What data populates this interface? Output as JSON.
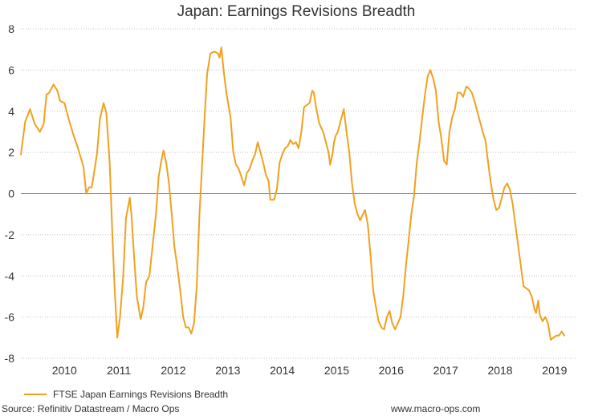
{
  "chart_data": {
    "type": "line",
    "title": "Japan: Earnings Revisions Breadth",
    "xlabel": "",
    "ylabel": "",
    "ylim": [
      -8,
      8
    ],
    "yticks": [
      8,
      6,
      4,
      2,
      0,
      -2,
      -4,
      -6,
      -8
    ],
    "xlim": [
      2009.2,
      2019.4
    ],
    "xticks": [
      2010,
      2011,
      2012,
      2013,
      2014,
      2015,
      2016,
      2017,
      2018,
      2019
    ],
    "xtick_labels": [
      "2010",
      "2011",
      "2012",
      "2013",
      "2014",
      "2015",
      "2016",
      "2017",
      "2018",
      "2019"
    ],
    "grid": "horizontal dotted",
    "legend_position": "bottom-left",
    "series": [
      {
        "name": "FTSE Japan Earnings Revisions Breadth",
        "color": "#f0a11e",
        "points": [
          [
            2009.2,
            1.9
          ],
          [
            2009.28,
            3.5
          ],
          [
            2009.37,
            4.1
          ],
          [
            2009.45,
            3.4
          ],
          [
            2009.55,
            3.0
          ],
          [
            2009.62,
            3.4
          ],
          [
            2009.67,
            4.8
          ],
          [
            2009.72,
            4.9
          ],
          [
            2009.8,
            5.3
          ],
          [
            2009.87,
            5.0
          ],
          [
            2009.92,
            4.5
          ],
          [
            2010.0,
            4.4
          ],
          [
            2010.08,
            3.6
          ],
          [
            2010.16,
            2.9
          ],
          [
            2010.25,
            2.2
          ],
          [
            2010.35,
            1.3
          ],
          [
            2010.4,
            0.0
          ],
          [
            2010.45,
            0.3
          ],
          [
            2010.5,
            0.3
          ],
          [
            2010.55,
            1.1
          ],
          [
            2010.6,
            2.0
          ],
          [
            2010.65,
            3.6
          ],
          [
            2010.72,
            4.4
          ],
          [
            2010.77,
            3.9
          ],
          [
            2010.83,
            1.5
          ],
          [
            2010.88,
            -2.0
          ],
          [
            2010.92,
            -4.5
          ],
          [
            2010.97,
            -7.0
          ],
          [
            2011.02,
            -6.0
          ],
          [
            2011.08,
            -4.0
          ],
          [
            2011.13,
            -1.2
          ],
          [
            2011.2,
            -0.2
          ],
          [
            2011.23,
            -1.0
          ],
          [
            2011.27,
            -2.7
          ],
          [
            2011.33,
            -5.0
          ],
          [
            2011.4,
            -6.1
          ],
          [
            2011.45,
            -5.5
          ],
          [
            2011.5,
            -4.3
          ],
          [
            2011.56,
            -4.0
          ],
          [
            2011.62,
            -2.5
          ],
          [
            2011.68,
            -1.0
          ],
          [
            2011.73,
            0.8
          ],
          [
            2011.78,
            1.6
          ],
          [
            2011.82,
            2.1
          ],
          [
            2011.87,
            1.5
          ],
          [
            2011.92,
            0.5
          ],
          [
            2011.97,
            -1.0
          ],
          [
            2012.02,
            -2.6
          ],
          [
            2012.07,
            -3.5
          ],
          [
            2012.13,
            -4.8
          ],
          [
            2012.18,
            -6.0
          ],
          [
            2012.23,
            -6.5
          ],
          [
            2012.28,
            -6.5
          ],
          [
            2012.33,
            -6.8
          ],
          [
            2012.38,
            -6.3
          ],
          [
            2012.43,
            -4.5
          ],
          [
            2012.48,
            -1.0
          ],
          [
            2012.53,
            1.5
          ],
          [
            2012.58,
            4.0
          ],
          [
            2012.62,
            5.8
          ],
          [
            2012.68,
            6.8
          ],
          [
            2012.75,
            6.9
          ],
          [
            2012.82,
            6.8
          ],
          [
            2012.85,
            6.6
          ],
          [
            2012.88,
            7.1
          ],
          [
            2012.93,
            5.8
          ],
          [
            2012.98,
            4.8
          ],
          [
            2013.05,
            3.7
          ],
          [
            2013.1,
            2.0
          ],
          [
            2013.15,
            1.4
          ],
          [
            2013.2,
            1.2
          ],
          [
            2013.25,
            0.8
          ],
          [
            2013.3,
            0.4
          ],
          [
            2013.35,
            1.0
          ],
          [
            2013.4,
            1.2
          ],
          [
            2013.45,
            1.6
          ],
          [
            2013.5,
            1.9
          ],
          [
            2013.55,
            2.5
          ],
          [
            2013.6,
            2.0
          ],
          [
            2013.65,
            1.5
          ],
          [
            2013.7,
            0.9
          ],
          [
            2013.75,
            0.6
          ],
          [
            2013.78,
            -0.3
          ],
          [
            2013.85,
            -0.3
          ],
          [
            2013.9,
            0.2
          ],
          [
            2013.95,
            1.5
          ],
          [
            2014.0,
            1.9
          ],
          [
            2014.05,
            2.2
          ],
          [
            2014.1,
            2.3
          ],
          [
            2014.15,
            2.6
          ],
          [
            2014.2,
            2.4
          ],
          [
            2014.25,
            2.5
          ],
          [
            2014.3,
            2.2
          ],
          [
            2014.35,
            3.0
          ],
          [
            2014.4,
            4.2
          ],
          [
            2014.45,
            4.3
          ],
          [
            2014.5,
            4.4
          ],
          [
            2014.55,
            5.0
          ],
          [
            2014.58,
            4.9
          ],
          [
            2014.62,
            4.2
          ],
          [
            2014.68,
            3.4
          ],
          [
            2014.75,
            3.0
          ],
          [
            2014.8,
            2.5
          ],
          [
            2014.85,
            2.0
          ],
          [
            2014.88,
            1.4
          ],
          [
            2014.92,
            1.9
          ],
          [
            2014.95,
            2.5
          ],
          [
            2014.98,
            2.8
          ],
          [
            2015.02,
            3.0
          ],
          [
            2015.07,
            3.5
          ],
          [
            2015.1,
            3.8
          ],
          [
            2015.13,
            4.1
          ],
          [
            2015.18,
            3.0
          ],
          [
            2015.23,
            2.0
          ],
          [
            2015.28,
            0.5
          ],
          [
            2015.33,
            -0.5
          ],
          [
            2015.38,
            -1.0
          ],
          [
            2015.43,
            -1.3
          ],
          [
            2015.48,
            -1.0
          ],
          [
            2015.52,
            -0.8
          ],
          [
            2015.57,
            -1.5
          ],
          [
            2015.62,
            -3.0
          ],
          [
            2015.67,
            -4.7
          ],
          [
            2015.72,
            -5.5
          ],
          [
            2015.77,
            -6.2
          ],
          [
            2015.82,
            -6.5
          ],
          [
            2015.87,
            -6.6
          ],
          [
            2015.92,
            -6.0
          ],
          [
            2015.97,
            -5.7
          ],
          [
            2016.02,
            -6.3
          ],
          [
            2016.07,
            -6.6
          ],
          [
            2016.12,
            -6.3
          ],
          [
            2016.17,
            -6.0
          ],
          [
            2016.22,
            -5.0
          ],
          [
            2016.27,
            -3.5
          ],
          [
            2016.32,
            -2.3
          ],
          [
            2016.37,
            -1.0
          ],
          [
            2016.42,
            -0.1
          ],
          [
            2016.47,
            1.5
          ],
          [
            2016.52,
            2.5
          ],
          [
            2016.57,
            3.7
          ],
          [
            2016.62,
            4.8
          ],
          [
            2016.67,
            5.7
          ],
          [
            2016.72,
            6.0
          ],
          [
            2016.77,
            5.6
          ],
          [
            2016.82,
            5.0
          ],
          [
            2016.87,
            3.5
          ],
          [
            2016.92,
            2.7
          ],
          [
            2016.97,
            1.6
          ],
          [
            2017.02,
            1.4
          ],
          [
            2017.07,
            3.0
          ],
          [
            2017.12,
            3.7
          ],
          [
            2017.17,
            4.1
          ],
          [
            2017.22,
            4.9
          ],
          [
            2017.27,
            4.9
          ],
          [
            2017.32,
            4.7
          ],
          [
            2017.38,
            5.2
          ],
          [
            2017.43,
            5.1
          ],
          [
            2017.48,
            4.9
          ],
          [
            2017.53,
            4.5
          ],
          [
            2017.58,
            4.0
          ],
          [
            2017.63,
            3.5
          ],
          [
            2017.68,
            3.0
          ],
          [
            2017.73,
            2.6
          ],
          [
            2017.78,
            1.5
          ],
          [
            2017.83,
            0.5
          ],
          [
            2017.88,
            -0.3
          ],
          [
            2017.93,
            -0.8
          ],
          [
            2017.98,
            -0.7
          ],
          [
            2018.03,
            -0.2
          ],
          [
            2018.08,
            0.3
          ],
          [
            2018.13,
            0.5
          ],
          [
            2018.18,
            0.2
          ],
          [
            2018.23,
            -0.5
          ],
          [
            2018.28,
            -1.5
          ],
          [
            2018.33,
            -2.5
          ],
          [
            2018.38,
            -3.5
          ],
          [
            2018.43,
            -4.5
          ],
          [
            2018.48,
            -4.6
          ],
          [
            2018.53,
            -4.7
          ],
          [
            2018.58,
            -5.0
          ],
          [
            2018.63,
            -5.6
          ],
          [
            2018.66,
            -5.8
          ],
          [
            2018.7,
            -5.2
          ],
          [
            2018.73,
            -5.9
          ],
          [
            2018.78,
            -6.2
          ],
          [
            2018.83,
            -6.0
          ],
          [
            2018.88,
            -6.3
          ],
          [
            2018.93,
            -7.1
          ],
          [
            2018.98,
            -7.0
          ],
          [
            2019.03,
            -6.9
          ],
          [
            2019.08,
            -6.9
          ],
          [
            2019.13,
            -6.7
          ],
          [
            2019.18,
            -6.9
          ]
        ]
      }
    ],
    "source_note": "Source: Refinitiv Datastream / Macro Ops",
    "website": "www.macro-ops.com"
  }
}
